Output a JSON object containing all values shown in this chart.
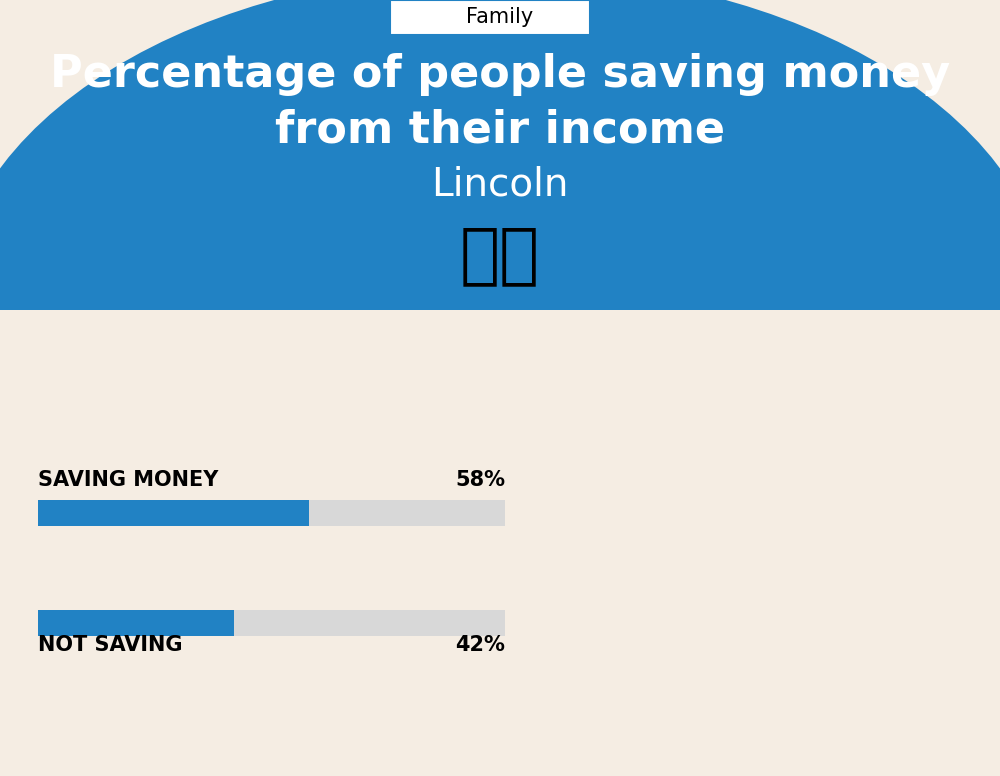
{
  "title_line1": "Percentage of people saving money",
  "title_line2": "from their income",
  "subtitle": "Lincoln",
  "tab_label": "Family",
  "bg_color": "#f5ede3",
  "blue_color": "#2182c4",
  "bar_bg_color": "#d8d8d8",
  "bar_blue_color": "#2182c4",
  "white": "#ffffff",
  "black": "#000000",
  "saving_label": "SAVING MONEY",
  "saving_value": 58,
  "saving_pct_text": "58%",
  "not_saving_label": "NOT SAVING",
  "not_saving_value": 42,
  "not_saving_pct_text": "42%",
  "flag_emoji": "🇬🇧",
  "fig_width": 10.0,
  "fig_height": 7.76
}
